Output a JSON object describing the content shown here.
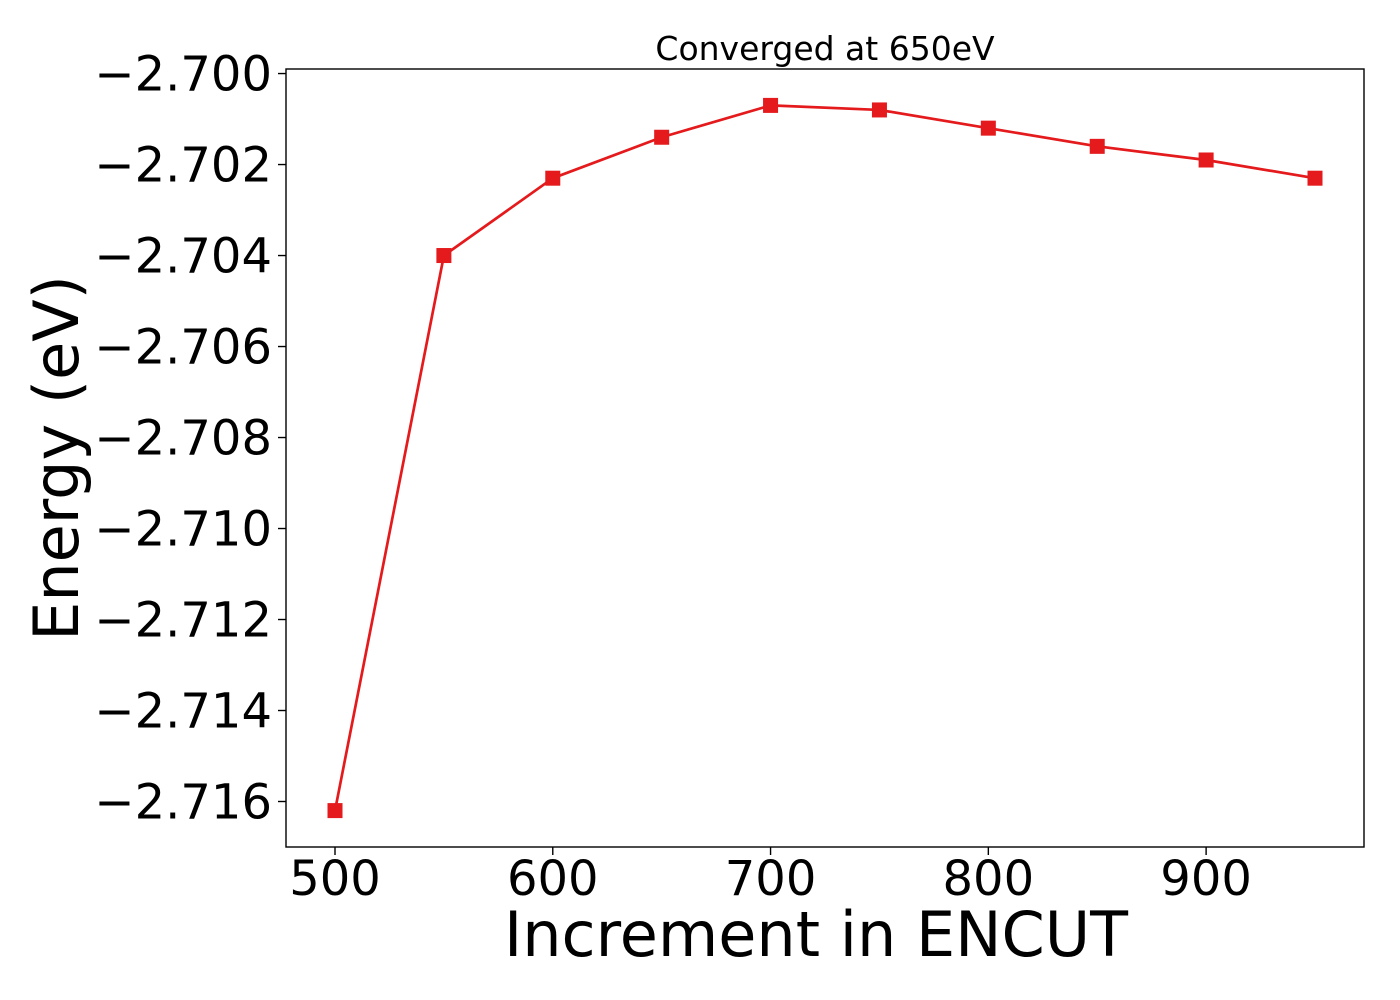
{
  "chart_data": {
    "type": "line",
    "title": "Converged at 650eV",
    "xlabel": "Increment in ENCUT",
    "ylabel": "Energy (eV)",
    "xlim": [
      477.5,
      972.5
    ],
    "ylim": [
      -2.717,
      -2.6999
    ],
    "xticks": [
      500,
      600,
      700,
      800,
      900
    ],
    "yticks": [
      -2.7,
      -2.702,
      -2.704,
      -2.706,
      -2.708,
      -2.71,
      -2.712,
      -2.714,
      -2.716
    ],
    "xtick_labels": [
      "500",
      "600",
      "700",
      "800",
      "900"
    ],
    "ytick_labels": [
      "−2.700",
      "−2.702",
      "−2.704",
      "−2.706",
      "−2.708",
      "−2.710",
      "−2.712",
      "−2.714",
      "−2.716"
    ],
    "grid": false,
    "series": [
      {
        "color": "#e41a1c",
        "marker": "square",
        "x": [
          500,
          550,
          600,
          650,
          700,
          750,
          800,
          850,
          900,
          950
        ],
        "y": [
          -2.7162,
          -2.704,
          -2.7023,
          -2.7014,
          -2.7007,
          -2.7008,
          -2.7012,
          -2.7016,
          -2.7019,
          -2.7023
        ]
      }
    ]
  }
}
